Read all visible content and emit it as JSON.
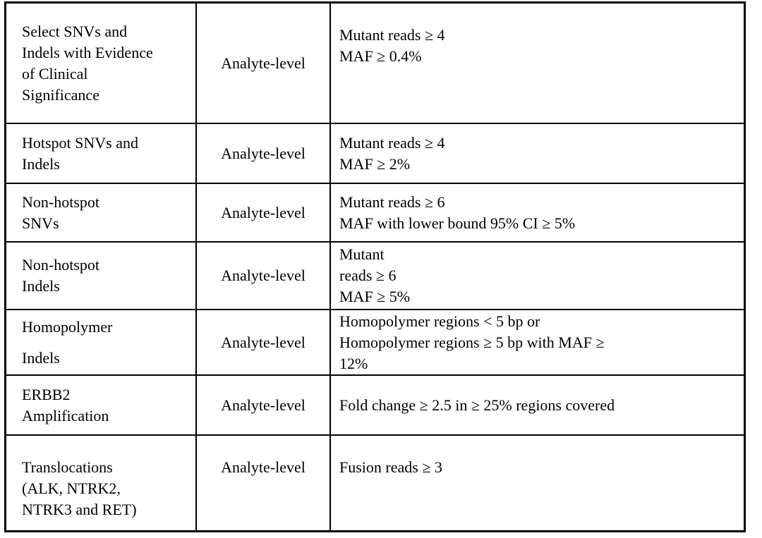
{
  "document": {
    "kind": "table",
    "description_visible_content_only": "Variant category / level / detection criteria table"
  },
  "colors": {
    "border": "#000000",
    "text": "#000000",
    "background": "#ffffff"
  },
  "table": {
    "rows": [
      {
        "type": [
          "Select SNVs and",
          "Indels with Evidence",
          "of Clinical",
          "Significance"
        ],
        "level": "Analyte-level",
        "criteria": [
          "Mutant reads ≥ 4",
          "MAF ≥ 0.4%"
        ]
      },
      {
        "type": [
          "Hotspot SNVs and",
          "Indels"
        ],
        "level": "Analyte-level",
        "criteria": [
          "Mutant reads ≥ 4",
          "MAF ≥ 2%"
        ]
      },
      {
        "type": [
          "Non-hotspot",
          "SNVs"
        ],
        "level": "Analyte-level",
        "criteria": [
          "Mutant reads ≥ 6",
          "MAF with lower bound 95% CI ≥ 5%"
        ]
      },
      {
        "type": [
          "Non-hotspot",
          "Indels"
        ],
        "level": "Analyte-level",
        "criteria": [
          "Mutant",
          "reads ≥ 6",
          "MAF ≥ 5%"
        ]
      },
      {
        "type": [
          "Homopolymer",
          "Indels"
        ],
        "level": "Analyte-level",
        "criteria": [
          "Homopolymer regions < 5 bp or",
          "Homopolymer regions ≥ 5 bp with MAF ≥",
          "12%"
        ]
      },
      {
        "type": [
          "ERBB2",
          "Amplification"
        ],
        "level": "Analyte-level",
        "criteria": [
          "Fold change ≥ 2.5 in ≥ 25% regions covered"
        ]
      },
      {
        "type": [
          "Translocations",
          "(ALK, NTRK2,",
          "NTRK3 and RET)"
        ],
        "level": "Analyte-level",
        "criteria": [
          "Fusion reads ≥ 3"
        ]
      }
    ]
  }
}
